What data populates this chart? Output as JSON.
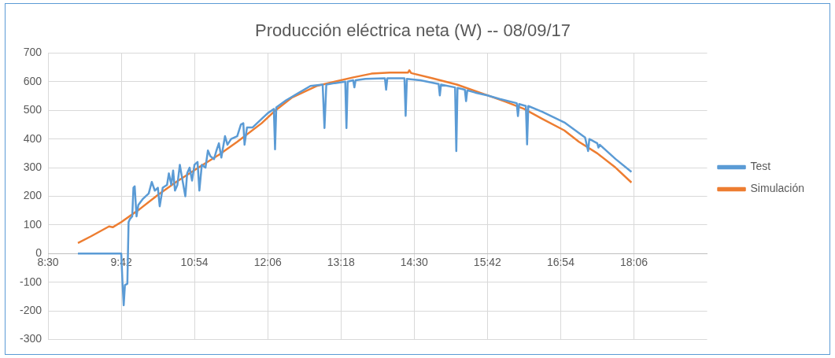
{
  "chart_data": {
    "type": "line",
    "title": "Producción eléctrica neta (W) -- 08/09/17",
    "xlim": [
      8.5,
      19.3
    ],
    "xticks": [
      {
        "value": 8.5,
        "label": "8:30"
      },
      {
        "value": 9.7,
        "label": "9:42"
      },
      {
        "value": 10.9,
        "label": "10:54"
      },
      {
        "value": 12.1,
        "label": "12:06"
      },
      {
        "value": 13.3,
        "label": "13:18"
      },
      {
        "value": 14.5,
        "label": "14:30"
      },
      {
        "value": 15.7,
        "label": "15:42"
      },
      {
        "value": 16.9,
        "label": "16:54"
      },
      {
        "value": 18.1,
        "label": "18:06"
      }
    ],
    "ylim": [
      -300,
      700
    ],
    "yticks": [
      -300,
      -200,
      -100,
      0,
      100,
      200,
      300,
      400,
      500,
      600,
      700
    ],
    "grid": true,
    "legend": "right",
    "marker": "none",
    "line_style": "solid",
    "series": [
      {
        "name": "Test",
        "color": "#5b9bd5",
        "x": [
          8.99,
          9.7,
          9.72,
          9.74,
          9.76,
          9.8,
          9.82,
          9.84,
          9.88,
          9.9,
          9.92,
          9.95,
          9.98,
          10.05,
          10.15,
          10.2,
          10.25,
          10.3,
          10.33,
          10.38,
          10.45,
          10.48,
          10.52,
          10.55,
          10.58,
          10.62,
          10.66,
          10.7,
          10.75,
          10.78,
          10.82,
          10.86,
          10.9,
          10.95,
          10.98,
          11.02,
          11.08,
          11.12,
          11.16,
          11.22,
          11.26,
          11.3,
          11.34,
          11.4,
          11.44,
          11.5,
          11.6,
          11.66,
          11.7,
          11.72,
          11.76,
          11.85,
          12.0,
          12.1,
          12.2,
          12.22,
          12.24,
          12.4,
          12.6,
          12.8,
          13.0,
          13.03,
          13.06,
          13.2,
          13.37,
          13.39,
          13.41,
          13.5,
          13.52,
          13.54,
          13.7,
          14.02,
          14.04,
          14.06,
          14.34,
          14.36,
          14.38,
          14.6,
          14.9,
          14.92,
          14.94,
          15.17,
          15.19,
          15.21,
          15.33,
          15.35,
          15.37,
          15.5,
          15.7,
          15.9,
          16.18,
          16.2,
          16.22,
          16.33,
          16.35,
          16.37,
          16.6,
          16.96,
          17.3,
          17.35,
          17.37,
          17.5,
          17.52,
          17.54,
          17.8,
          18.06
        ],
        "values": [
          0,
          0,
          -100,
          -180,
          -110,
          -105,
          110,
          120,
          130,
          230,
          235,
          130,
          170,
          190,
          210,
          250,
          220,
          230,
          165,
          230,
          240,
          280,
          240,
          290,
          220,
          240,
          310,
          260,
          200,
          280,
          300,
          255,
          310,
          320,
          220,
          310,
          300,
          360,
          340,
          330,
          360,
          385,
          335,
          410,
          380,
          400,
          410,
          450,
          455,
          380,
          440,
          440,
          470,
          490,
          505,
          364,
          510,
          535,
          560,
          585,
          590,
          438,
          590,
          595,
          600,
          438,
          600,
          605,
          580,
          605,
          610,
          612,
          572,
          612,
          612,
          481,
          610,
          605,
          592,
          552,
          590,
          580,
          358,
          578,
          572,
          532,
          570,
          562,
          552,
          540,
          525,
          480,
          522,
          515,
          381,
          515,
          495,
          458,
          405,
          358,
          400,
          385,
          370,
          380,
          330,
          285
        ]
      },
      {
        "name": "Simulación",
        "color": "#ed7d31",
        "x": [
          8.99,
          9.2,
          9.5,
          9.56,
          9.7,
          10.0,
          10.3,
          10.6,
          11.0,
          11.3,
          11.6,
          12.0,
          12.2,
          12.5,
          12.9,
          13.2,
          13.5,
          13.8,
          14.1,
          14.4,
          14.42,
          14.45,
          14.8,
          15.2,
          15.6,
          16.0,
          16.3,
          16.6,
          16.96,
          17.2,
          17.5,
          17.8,
          18.06
        ],
        "values": [
          37,
          60,
          95,
          92,
          110,
          155,
          205,
          250,
          305,
          345,
          390,
          455,
          495,
          545,
          585,
          600,
          615,
          628,
          632,
          632,
          640,
          630,
          612,
          590,
          560,
          530,
          505,
          470,
          430,
          390,
          350,
          300,
          248
        ]
      }
    ]
  }
}
